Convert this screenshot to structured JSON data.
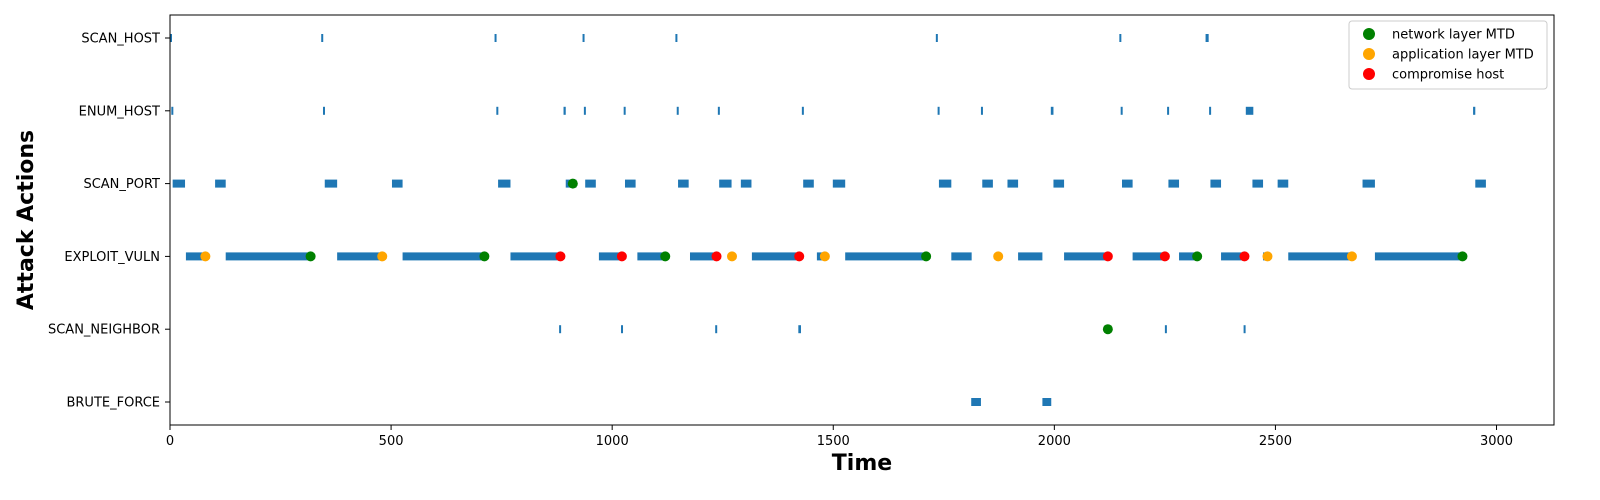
{
  "chart_data": {
    "type": "timeline",
    "xlabel": "Time",
    "ylabel": "Attack Actions",
    "xlim": [
      0,
      3130
    ],
    "x_ticks": [
      "0",
      "500",
      "1000",
      "1500",
      "2000",
      "2500",
      "3000"
    ],
    "x_tick_values": [
      0,
      500,
      1000,
      1500,
      2000,
      2500,
      3000
    ],
    "categories": [
      "SCAN_HOST",
      "ENUM_HOST",
      "SCAN_PORT",
      "EXPLOIT_VULN",
      "SCAN_NEIGHBOR",
      "BRUTE_FORCE"
    ],
    "grid": false,
    "legend_position": "top-right",
    "bar_color": "#1f77b4",
    "intervals": {
      "SCAN_HOST": [
        [
          0,
          3
        ],
        [
          342,
          345
        ],
        [
          734,
          737
        ],
        [
          933,
          936
        ],
        [
          1143,
          1146
        ],
        [
          1732,
          1735
        ],
        [
          2147,
          2150
        ],
        [
          2342,
          2349
        ]
      ],
      "ENUM_HOST": [
        [
          3,
          6
        ],
        [
          346,
          349
        ],
        [
          738,
          741
        ],
        [
          890,
          895
        ],
        [
          936,
          939
        ],
        [
          1026,
          1029
        ],
        [
          1146,
          1149
        ],
        [
          1239,
          1242
        ],
        [
          1429,
          1432
        ],
        [
          1736,
          1739
        ],
        [
          1834,
          1837
        ],
        [
          1992,
          1998
        ],
        [
          2150,
          2153
        ],
        [
          2255,
          2258
        ],
        [
          2350,
          2353
        ],
        [
          2433,
          2450
        ],
        [
          2947,
          2952
        ]
      ],
      "SCAN_PORT": [
        [
          6,
          34
        ],
        [
          102,
          126
        ],
        [
          350,
          378
        ],
        [
          502,
          526
        ],
        [
          742,
          770
        ],
        [
          895,
          919
        ],
        [
          939,
          963
        ],
        [
          1029,
          1053
        ],
        [
          1149,
          1173
        ],
        [
          1242,
          1270
        ],
        [
          1291,
          1315
        ],
        [
          1432,
          1456
        ],
        [
          1499,
          1527
        ],
        [
          1739,
          1767
        ],
        [
          1837,
          1861
        ],
        [
          1894,
          1918
        ],
        [
          1998,
          2022
        ],
        [
          2153,
          2177
        ],
        [
          2258,
          2282
        ],
        [
          2353,
          2377
        ],
        [
          2448,
          2472
        ],
        [
          2505,
          2529
        ],
        [
          2697,
          2725
        ],
        [
          2952,
          2976
        ]
      ],
      "EXPLOIT_VULN": [
        [
          36,
          80
        ],
        [
          126,
          319
        ],
        [
          378,
          481
        ],
        [
          526,
          708
        ],
        [
          770,
          880
        ],
        [
          970,
          1019
        ],
        [
          1057,
          1120
        ],
        [
          1176,
          1234
        ],
        [
          1270,
          1272
        ],
        [
          1316,
          1420
        ],
        [
          1463,
          1479
        ],
        [
          1527,
          1710
        ],
        [
          1767,
          1813
        ],
        [
          1918,
          1973
        ],
        [
          2022,
          2120
        ],
        [
          2177,
          2252
        ],
        [
          2282,
          2323
        ],
        [
          2377,
          2427
        ],
        [
          2472,
          2480
        ],
        [
          2529,
          2672
        ],
        [
          2725,
          2923
        ]
      ],
      "SCAN_NEIGHBOR": [
        [
          880,
          883
        ],
        [
          1020,
          1023
        ],
        [
          1233,
          1236
        ],
        [
          1421,
          1427
        ],
        [
          2118,
          2121
        ],
        [
          2250,
          2253
        ],
        [
          2428,
          2431
        ]
      ],
      "BRUTE_FORCE": [
        [
          1812,
          1834
        ],
        [
          1973,
          1993
        ]
      ]
    },
    "series": [
      {
        "name": "network layer MTD",
        "color": "#008000",
        "points": [
          {
            "x": 318,
            "y": "EXPLOIT_VULN"
          },
          {
            "x": 711,
            "y": "EXPLOIT_VULN"
          },
          {
            "x": 911,
            "y": "SCAN_PORT"
          },
          {
            "x": 1120,
            "y": "EXPLOIT_VULN"
          },
          {
            "x": 1710,
            "y": "EXPLOIT_VULN"
          },
          {
            "x": 2121,
            "y": "SCAN_NEIGHBOR"
          },
          {
            "x": 2323,
            "y": "EXPLOIT_VULN"
          },
          {
            "x": 2923,
            "y": "EXPLOIT_VULN"
          }
        ]
      },
      {
        "name": "application layer MTD",
        "color": "#ffa500",
        "points": [
          {
            "x": 80,
            "y": "EXPLOIT_VULN"
          },
          {
            "x": 480,
            "y": "EXPLOIT_VULN"
          },
          {
            "x": 1271,
            "y": "EXPLOIT_VULN"
          },
          {
            "x": 1481,
            "y": "EXPLOIT_VULN"
          },
          {
            "x": 1873,
            "y": "EXPLOIT_VULN"
          },
          {
            "x": 2482,
            "y": "EXPLOIT_VULN"
          },
          {
            "x": 2673,
            "y": "EXPLOIT_VULN"
          }
        ]
      },
      {
        "name": "compromise host",
        "color": "#ff0000",
        "points": [
          {
            "x": 883,
            "y": "EXPLOIT_VULN"
          },
          {
            "x": 1022,
            "y": "EXPLOIT_VULN"
          },
          {
            "x": 1236,
            "y": "EXPLOIT_VULN"
          },
          {
            "x": 1423,
            "y": "EXPLOIT_VULN"
          },
          {
            "x": 2121,
            "y": "EXPLOIT_VULN"
          },
          {
            "x": 2250,
            "y": "EXPLOIT_VULN"
          },
          {
            "x": 2430,
            "y": "EXPLOIT_VULN"
          }
        ]
      }
    ]
  }
}
